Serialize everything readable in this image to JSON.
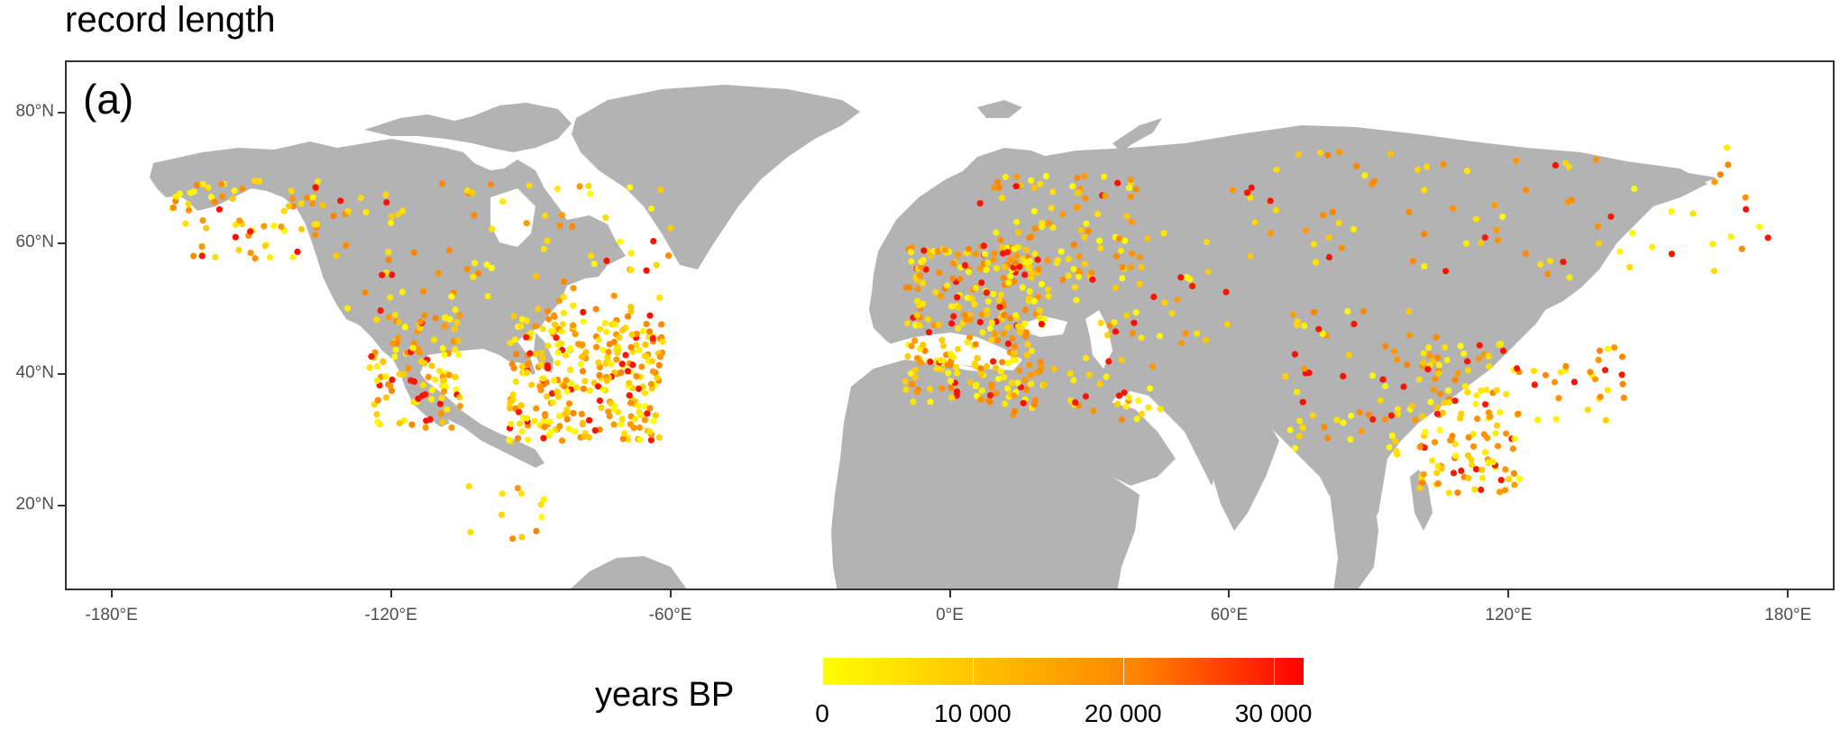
{
  "title": "record length",
  "panel_label": "(a)",
  "map": {
    "region": "world (north of ~7°N)",
    "land_color": "#b3b3b3",
    "background_color": "#ffffff",
    "lon_range": [
      -190,
      190
    ],
    "lat_range": [
      7,
      88
    ]
  },
  "axes": {
    "y_ticks": [
      {
        "value": 80,
        "label": "80°N"
      },
      {
        "value": 60,
        "label": "60°N"
      },
      {
        "value": 40,
        "label": "40°N"
      },
      {
        "value": 20,
        "label": "20°N"
      }
    ],
    "x_ticks": [
      {
        "value": -180,
        "label": "-180°E"
      },
      {
        "value": -120,
        "label": "-120°E"
      },
      {
        "value": -60,
        "label": "-60°E"
      },
      {
        "value": 0,
        "label": "0°E"
      },
      {
        "value": 60,
        "label": "60°E"
      },
      {
        "value": 120,
        "label": "120°E"
      },
      {
        "value": 180,
        "label": "180°E"
      }
    ]
  },
  "legend": {
    "title": "years BP",
    "range": [
      0,
      32000
    ],
    "colors": [
      "#ffff00",
      "#ffc000",
      "#ff8000",
      "#ff0000"
    ],
    "ticks": [
      {
        "value": 0,
        "label": "0"
      },
      {
        "value": 10000,
        "label": "10 000"
      },
      {
        "value": 20000,
        "label": "20 000"
      },
      {
        "value": 30000,
        "label": "30 000"
      }
    ]
  },
  "sites": {
    "n_points_approx": 1400,
    "clusters": [
      {
        "region": "eastern North America",
        "lon": [
          -95,
          -62
        ],
        "lat": [
          30,
          50
        ],
        "n": 300
      },
      {
        "region": "western North America",
        "lon": [
          -125,
          -105
        ],
        "lat": [
          32,
          50
        ],
        "n": 110
      },
      {
        "region": "Alaska and Yukon",
        "lon": [
          -168,
          -130
        ],
        "lat": [
          58,
          70
        ],
        "n": 75
      },
      {
        "region": "Canada",
        "lon": [
          -130,
          -60
        ],
        "lat": [
          50,
          70
        ],
        "n": 80
      },
      {
        "region": "Mexico and Central America",
        "lon": [
          -106,
          -87
        ],
        "lat": [
          15,
          25
        ],
        "n": 12
      },
      {
        "region": "Western Europe",
        "lon": [
          -10,
          20
        ],
        "lat": [
          36,
          60
        ],
        "n": 290
      },
      {
        "region": "Fennoscandia",
        "lon": [
          5,
          40
        ],
        "lat": [
          55,
          71
        ],
        "n": 75
      },
      {
        "region": "Eastern Europe and Russia",
        "lon": [
          20,
          60
        ],
        "lat": [
          45,
          62
        ],
        "n": 50
      },
      {
        "region": "Mediterranean and Near East",
        "lon": [
          10,
          45
        ],
        "lat": [
          33,
          43
        ],
        "n": 40
      },
      {
        "region": "Siberia",
        "lon": [
          60,
          180
        ],
        "lat": [
          55,
          75
        ],
        "n": 85
      },
      {
        "region": "Central Asia and Tibet",
        "lon": [
          70,
          105
        ],
        "lat": [
          28,
          50
        ],
        "n": 70
      },
      {
        "region": "China",
        "lon": [
          100,
          122
        ],
        "lat": [
          22,
          45
        ],
        "n": 120
      },
      {
        "region": "Japan and Korea",
        "lon": [
          125,
          145
        ],
        "lat": [
          33,
          45
        ],
        "n": 28
      }
    ]
  }
}
